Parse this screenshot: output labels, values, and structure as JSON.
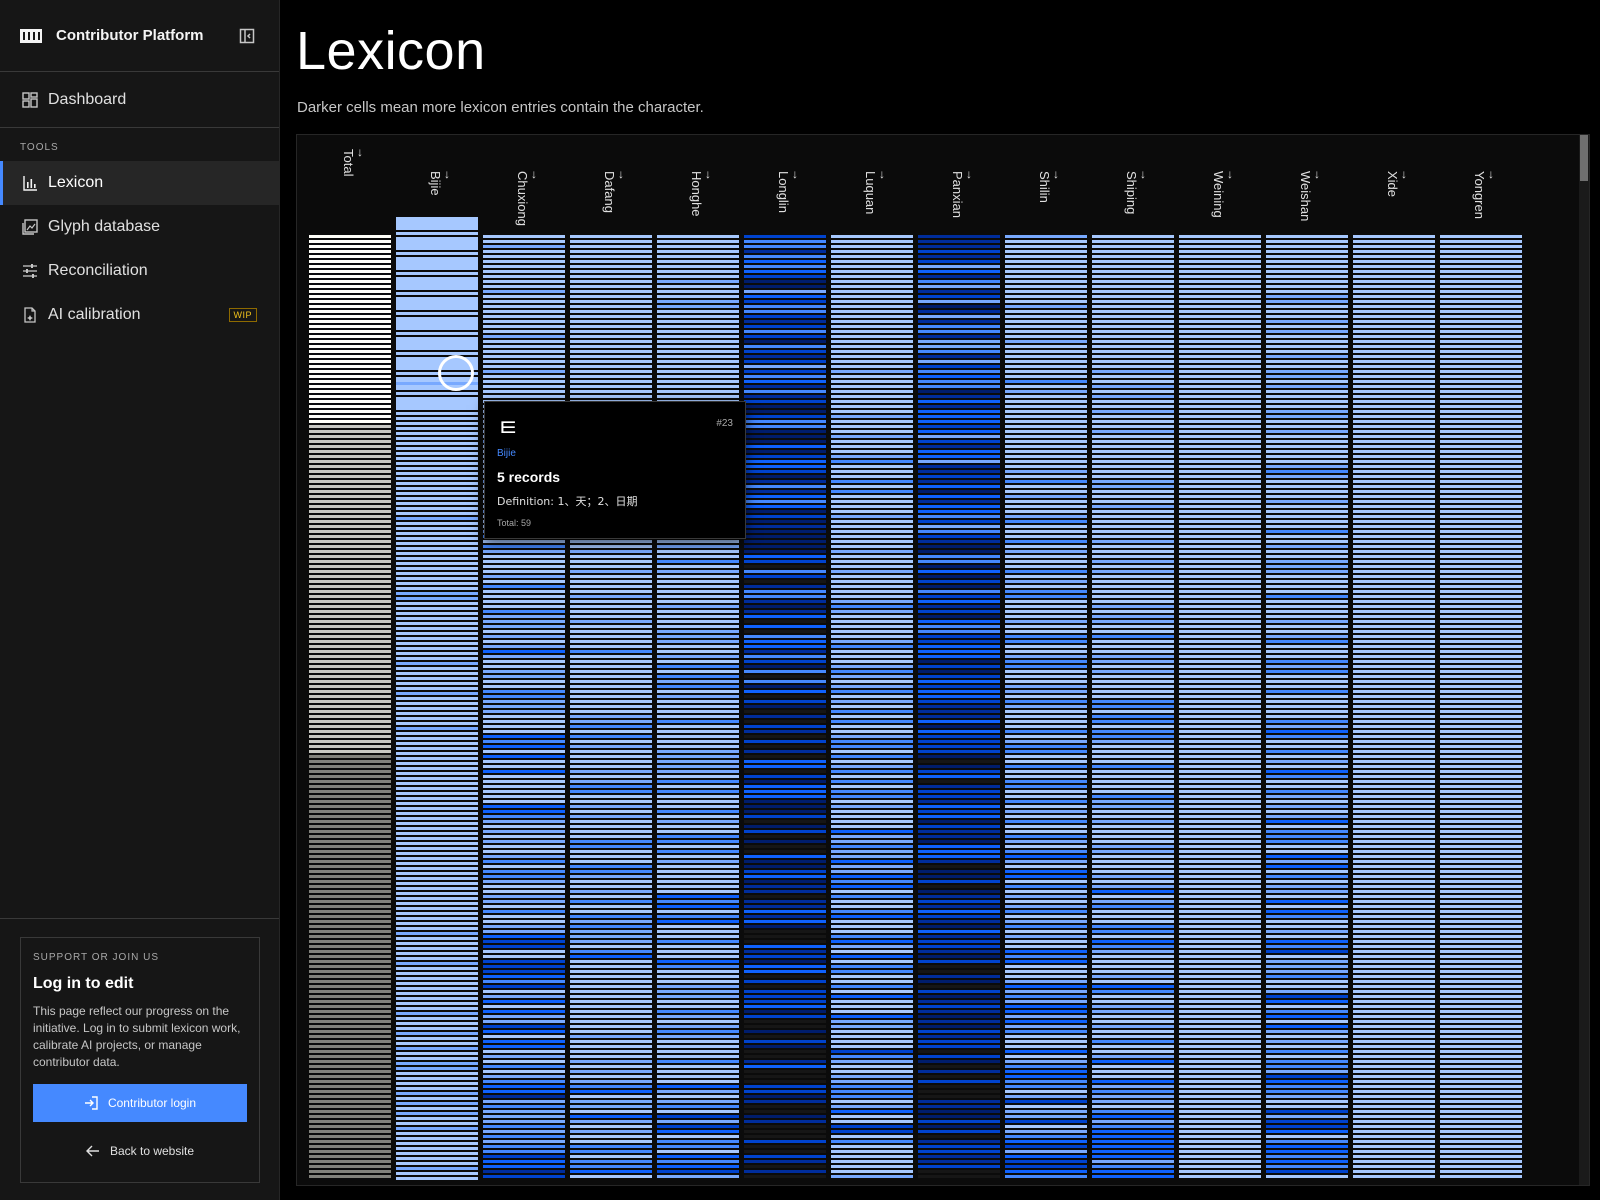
{
  "sidebar": {
    "brand": "Contributor Platform",
    "dashboard_label": "Dashboard",
    "section_label": "TOOLS",
    "items": [
      {
        "label": "Lexicon",
        "icon": "bar-chart-icon",
        "active": true
      },
      {
        "label": "Glyph database",
        "icon": "image-grid-icon",
        "active": false
      },
      {
        "label": "Reconciliation",
        "icon": "sliders-icon",
        "active": false
      },
      {
        "label": "AI calibration",
        "icon": "document-sparkle-icon",
        "active": false,
        "badge": "WIP"
      }
    ],
    "card": {
      "kicker": "SUPPORT OR JOIN US",
      "heading": "Log in to edit",
      "body": "This page reflect our progress on the initiative. Log in to submit lexicon work, calibrate AI projects, or manage contributor data.",
      "login_label": "Contributor login",
      "back_label": "Back to website"
    }
  },
  "main": {
    "title": "Lexicon",
    "subtitle": "Darker cells mean more lexicon entries contain the character."
  },
  "heatmap": {
    "columns": [
      "Total",
      "Bijie",
      "Chuxiong",
      "Dafang",
      "Honghe",
      "Longlin",
      "Luquan",
      "Panxian",
      "Shilin",
      "Shiping",
      "Weining",
      "Weishan",
      "Xide",
      "Yongren"
    ],
    "sort_arrow": "↓",
    "colors": {
      "lightest": "#a6c8ff",
      "light": "#78a9ff",
      "mid": "#4589ff",
      "strong": "#0f62fe",
      "dark": "#0043ce",
      "darker": "#002d9c",
      "deepest": "#001d6c",
      "black": "#161616"
    }
  },
  "tooltip": {
    "glyph": "ㅌ",
    "index": "#23",
    "region": "Bijie",
    "records": "5 records",
    "definition": "Definition: 1、天；2、日期",
    "total": "Total: 59"
  }
}
